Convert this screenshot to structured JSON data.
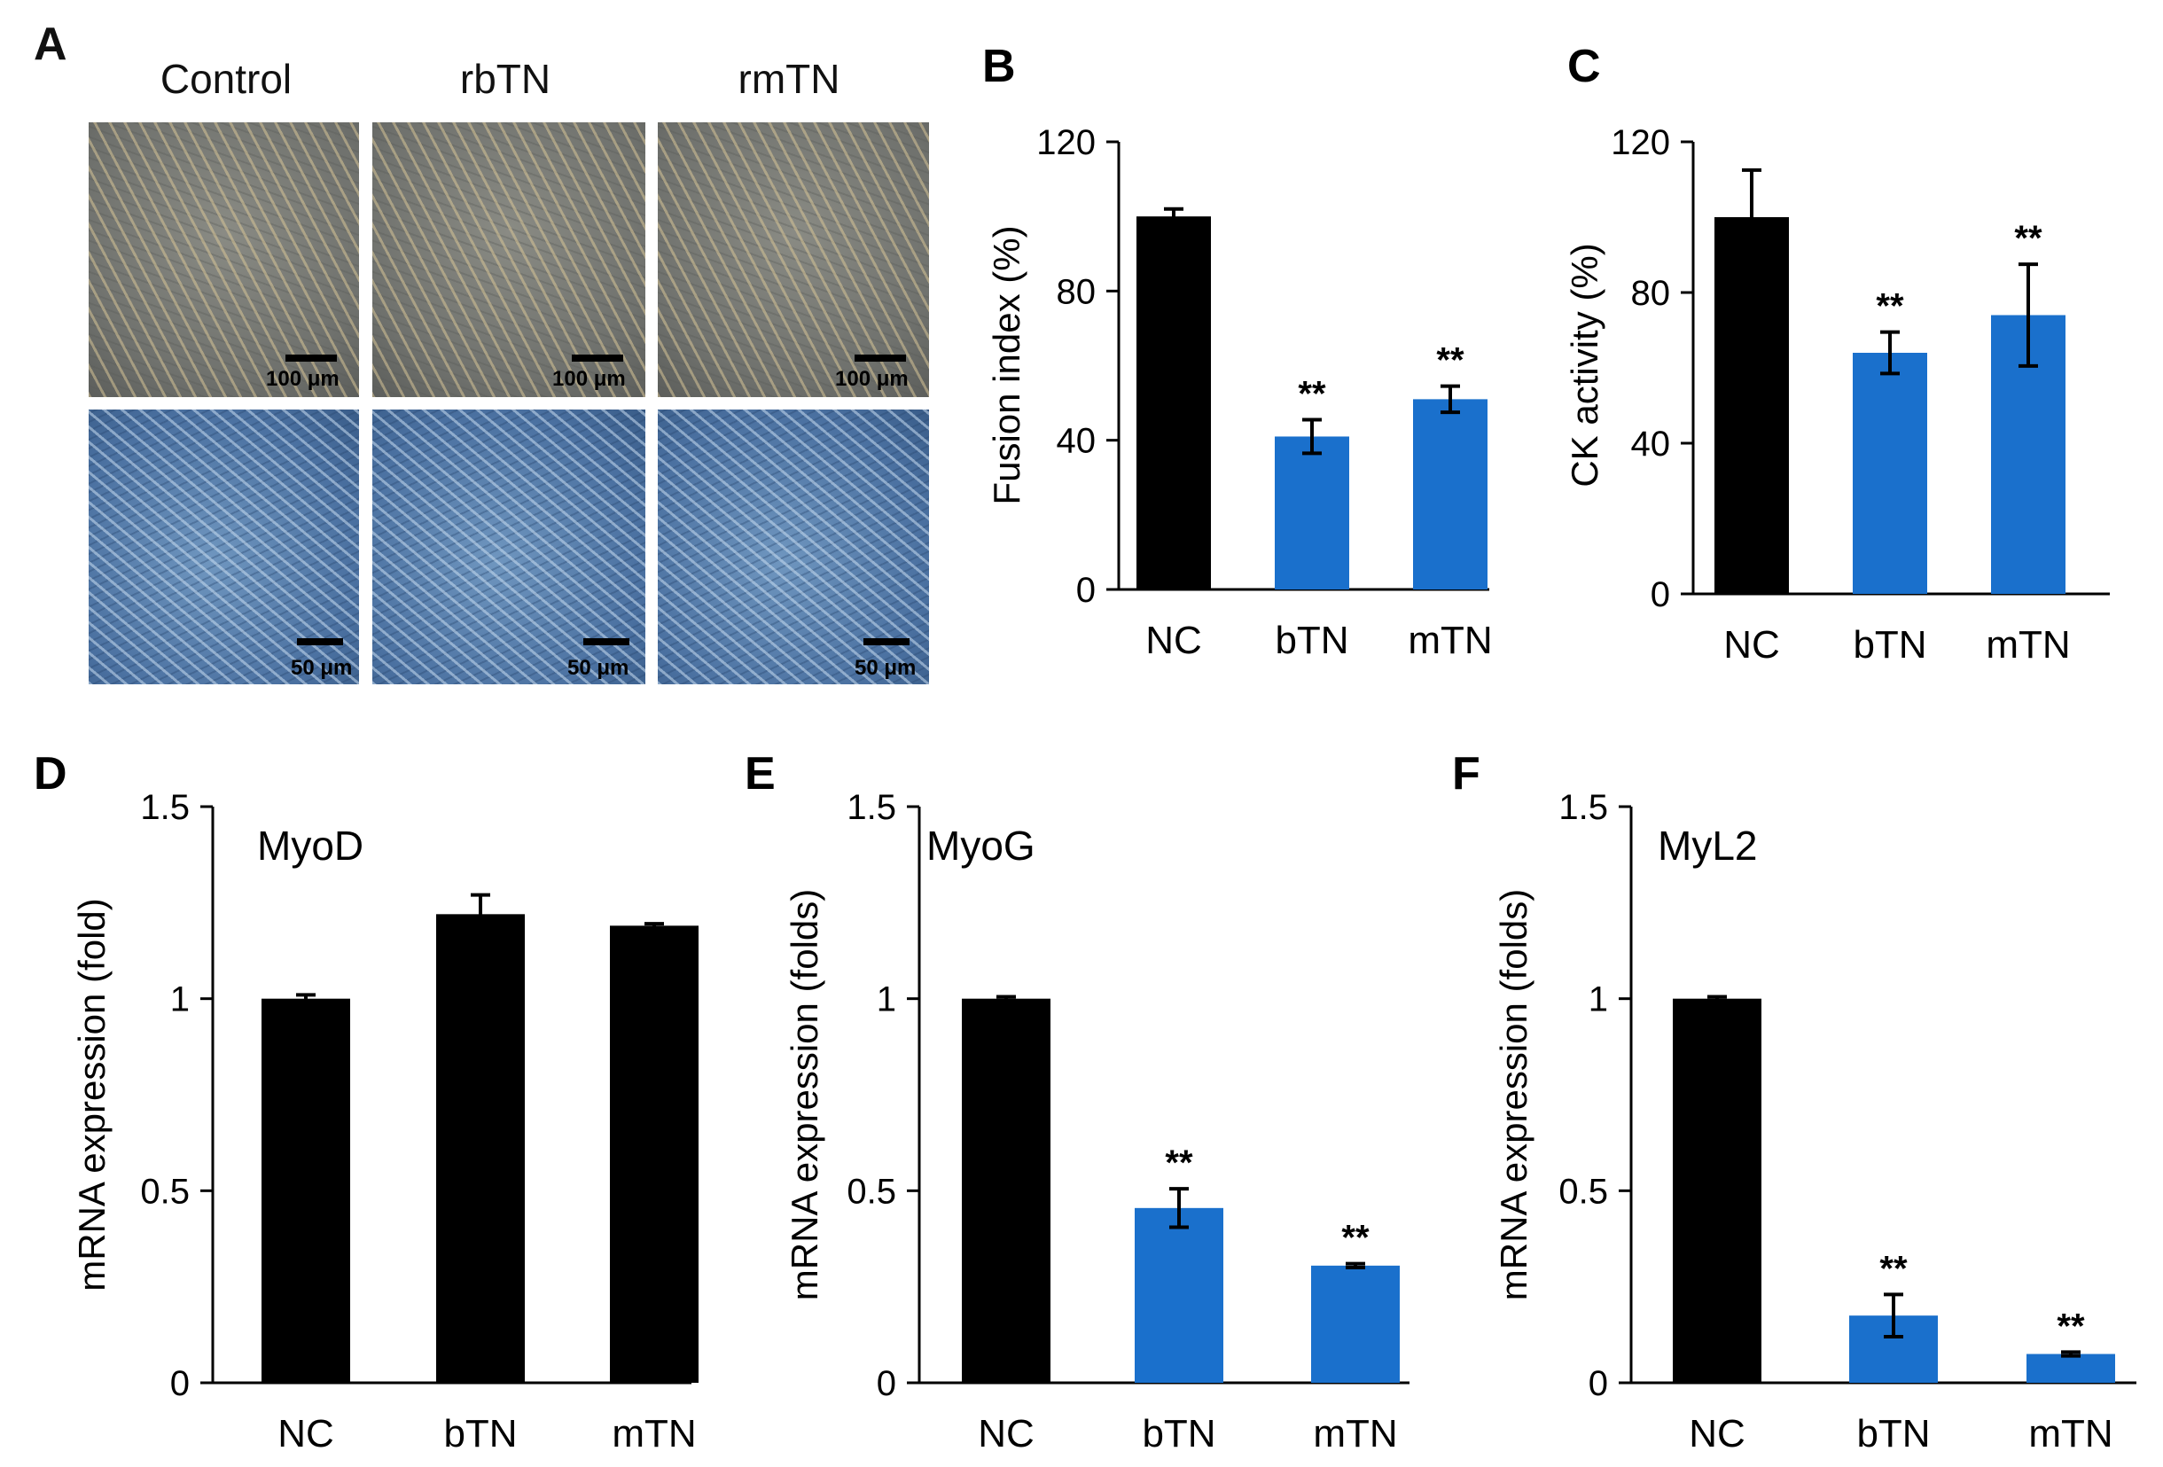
{
  "panel_a": {
    "letter": "A",
    "columns": [
      "Control",
      "rbTN",
      "rmTN"
    ],
    "top_scale_label": "100 μm",
    "bottom_scale_label": "50 μm"
  },
  "colors": {
    "nc": "#000000",
    "treated": "#1a70cc",
    "axis": "#000000"
  },
  "chart_data": [
    {
      "id": "B",
      "letter": "B",
      "type": "bar",
      "title": "",
      "xlabel": "",
      "ylabel": "Fusion index (%)",
      "categories": [
        "NC",
        "bTN",
        "mTN"
      ],
      "values": [
        100,
        41,
        51
      ],
      "errors": [
        2,
        4.5,
        3.5
      ],
      "significance": [
        "",
        "**",
        "**"
      ],
      "ylim": [
        0,
        120
      ],
      "yticks": [
        0,
        40,
        80,
        120
      ],
      "ytick_labels": [
        "0",
        "40",
        "80",
        "120"
      ]
    },
    {
      "id": "C",
      "letter": "C",
      "type": "bar",
      "title": "",
      "xlabel": "",
      "ylabel": "CK activity (%)",
      "categories": [
        "NC",
        "bTN",
        "mTN"
      ],
      "values": [
        100,
        64,
        74
      ],
      "errors": [
        12.5,
        5.5,
        13.5
      ],
      "significance": [
        "",
        "**",
        "**"
      ],
      "ylim": [
        0,
        120
      ],
      "yticks": [
        0,
        40,
        80,
        120
      ],
      "ytick_labels": [
        "0",
        "40",
        "80",
        "120"
      ]
    },
    {
      "id": "D",
      "letter": "D",
      "type": "bar",
      "title": "MyoD",
      "xlabel": "",
      "ylabel": "mRNA expression (fold)",
      "categories": [
        "NC",
        "bTN",
        "mTN"
      ],
      "values": [
        1.0,
        1.22,
        1.19
      ],
      "errors": [
        0.01,
        0.05,
        0.005
      ],
      "significance": [
        "",
        "",
        ""
      ],
      "ylim": [
        0,
        1.5
      ],
      "yticks": [
        0,
        0.5,
        1,
        1.5
      ],
      "ytick_labels": [
        "0",
        "0.5",
        "1",
        "1.5"
      ]
    },
    {
      "id": "E",
      "letter": "E",
      "type": "bar",
      "title": "MyoG",
      "xlabel": "",
      "ylabel": "mRNA expression (folds)",
      "categories": [
        "NC",
        "bTN",
        "mTN"
      ],
      "values": [
        1.0,
        0.455,
        0.305
      ],
      "errors": [
        0.005,
        0.05,
        0.005
      ],
      "significance": [
        "",
        "**",
        "**"
      ],
      "ylim": [
        0,
        1.5
      ],
      "yticks": [
        0,
        0.5,
        1,
        1.5
      ],
      "ytick_labels": [
        "0",
        "0.5",
        "1",
        "1.5"
      ]
    },
    {
      "id": "F",
      "letter": "F",
      "type": "bar",
      "title": "MyL2",
      "xlabel": "",
      "ylabel": "mRNA expression (folds)",
      "categories": [
        "NC",
        "bTN",
        "mTN"
      ],
      "values": [
        1.0,
        0.175,
        0.075
      ],
      "errors": [
        0.005,
        0.055,
        0.005
      ],
      "significance": [
        "",
        "**",
        "**"
      ],
      "ylim": [
        0,
        1.5
      ],
      "yticks": [
        0,
        0.5,
        1,
        1.5
      ],
      "ytick_labels": [
        "0",
        "0.5",
        "1",
        "1.5"
      ]
    }
  ]
}
